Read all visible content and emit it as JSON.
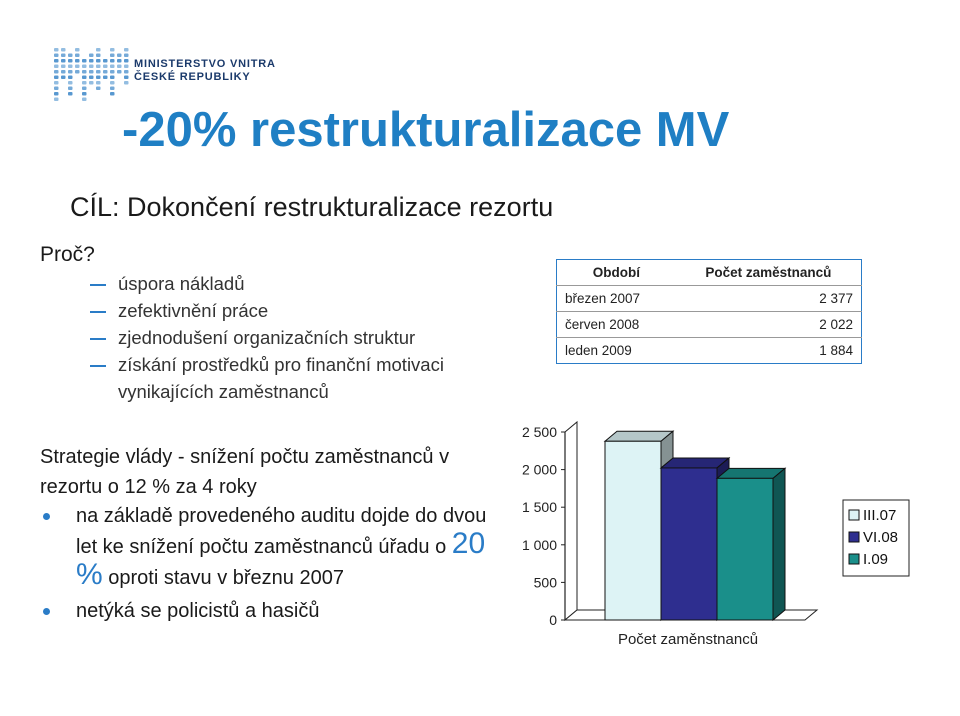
{
  "logo": {
    "line1": "MINISTERSTVO VNITRA",
    "line2": "ČESKÉ REPUBLIKY"
  },
  "title": "-20% restrukturalizace MV",
  "goal": "CÍL: Dokončení restrukturalizace rezortu",
  "why": "Proč?",
  "reasons": [
    "úspora nákladů",
    "zefektivnění práce",
    "zjednodušení organizačních struktur",
    "získání prostředků pro finanční motivaci vynikajících zaměstnanců"
  ],
  "strategy": "Strategie vlády - snížení počtu zaměstnanců v rezortu o 12 % za 4 roky",
  "bullet1": {
    "before": "na základě provedeného auditu dojde do dvou let ke snížení počtu zaměstnanců úřadu o ",
    "highlight": "20 %",
    "after": " oproti stavu v březnu 2007"
  },
  "bullet2": "netýká se policistů a hasičů",
  "table": {
    "headers": [
      "Období",
      "Počet zaměstnanců"
    ],
    "rows": [
      {
        "period": "březen 2007",
        "count": "2 377"
      },
      {
        "period": "červen 2008",
        "count": "2 022"
      },
      {
        "period": "leden 2009",
        "count": "1 884"
      }
    ]
  },
  "chart_data": {
    "type": "bar",
    "xlabel": "Počet zaměnstnanců",
    "ylim": [
      0,
      2500
    ],
    "yticks": [
      0,
      500,
      1000,
      1500,
      2000,
      2500
    ],
    "ytick_labels": [
      "0",
      "500",
      "1 000",
      "1 500",
      "2 000",
      "2 500"
    ],
    "series": [
      {
        "name": "III.07",
        "value": 2377,
        "color": "#ddf3f5"
      },
      {
        "name": "VI.08",
        "value": 2022,
        "color": "#2e2e8f"
      },
      {
        "name": "I.09",
        "value": 1884,
        "color": "#1a8f8a"
      }
    ],
    "legend_position": "right"
  }
}
